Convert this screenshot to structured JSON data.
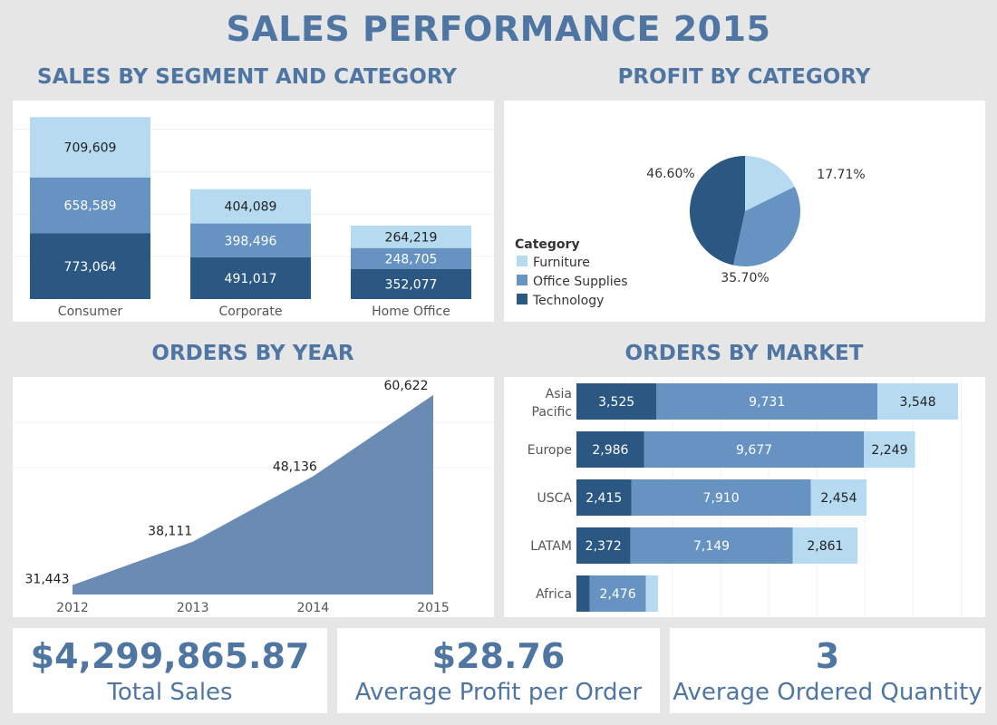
{
  "dashboard": {
    "title": "SALES PERFORMANCE 2015",
    "sections": {
      "segment": "SALES BY SEGMENT AND CATEGORY",
      "profit": "PROFIT BY CATEGORY",
      "orders_year": "ORDERS BY YEAR",
      "orders_market": "ORDERS BY MARKET"
    },
    "legend_title": "Category",
    "kpis": [
      {
        "value": "$4,299,865.87",
        "label": "Total Sales"
      },
      {
        "value": "$28.76",
        "label": "Average Profit per Order"
      },
      {
        "value": "3",
        "label": "Average Ordered Quantity"
      }
    ]
  },
  "colors": {
    "Furniture": "#b6daf0",
    "Office Supplies": "#6693c2",
    "Technology": "#2b5783",
    "area": "#6a8bb3",
    "title": "#4f76a3"
  },
  "chart_data": [
    {
      "type": "bar",
      "title": "SALES BY SEGMENT AND CATEGORY",
      "stacked": true,
      "categories": [
        "Consumer",
        "Corporate",
        "Home Office"
      ],
      "series": [
        {
          "name": "Technology",
          "values": [
            773064,
            491017,
            352077
          ],
          "labels": [
            "773,064",
            "491,017",
            "352,077"
          ]
        },
        {
          "name": "Office Supplies",
          "values": [
            658589,
            398496,
            248705
          ],
          "labels": [
            "658,589",
            "398,496",
            "248,705"
          ]
        },
        {
          "name": "Furniture",
          "values": [
            709609,
            404089,
            264219
          ],
          "labels": [
            "709,609",
            "404,089",
            "264,219"
          ]
        }
      ],
      "ylim": [
        0,
        2250000
      ],
      "grid": true
    },
    {
      "type": "pie",
      "title": "PROFIT BY CATEGORY",
      "categories": [
        "Furniture",
        "Office Supplies",
        "Technology"
      ],
      "values": [
        17.71,
        35.7,
        46.6
      ],
      "labels": [
        "17.71%",
        "35.70%",
        "46.60%"
      ],
      "legend": "left"
    },
    {
      "type": "area",
      "title": "ORDERS BY YEAR",
      "x": [
        "2012",
        "2013",
        "2014",
        "2015"
      ],
      "values": [
        31443,
        38111,
        48136,
        60622
      ],
      "labels": [
        "31,443",
        "38,111",
        "48,136",
        "60,622"
      ],
      "ylim": [
        30000,
        62000
      ],
      "grid": true
    },
    {
      "type": "bar",
      "title": "ORDERS BY MARKET",
      "orientation": "horizontal",
      "stacked": true,
      "categories": [
        [
          "Asia",
          "Pacific"
        ],
        [
          "Europe"
        ],
        [
          "USCA"
        ],
        [
          "LATAM"
        ],
        [
          "Africa"
        ]
      ],
      "series": [
        {
          "name": "Technology",
          "values": [
            3525,
            2986,
            2415,
            2372,
            582
          ],
          "labels": [
            "3,525",
            "2,986",
            "2,415",
            "2,372",
            ""
          ]
        },
        {
          "name": "Office Supplies",
          "values": [
            9731,
            9677,
            7910,
            7149,
            2476
          ],
          "labels": [
            "9,731",
            "9,677",
            "7,910",
            "7,149",
            "2,476"
          ]
        },
        {
          "name": "Furniture",
          "values": [
            3548,
            2249,
            2454,
            2861,
            540
          ],
          "labels": [
            "3,548",
            "2,249",
            "2,454",
            "2,861",
            ""
          ]
        }
      ],
      "xlim": [
        0,
        18000
      ],
      "grid": true
    }
  ]
}
